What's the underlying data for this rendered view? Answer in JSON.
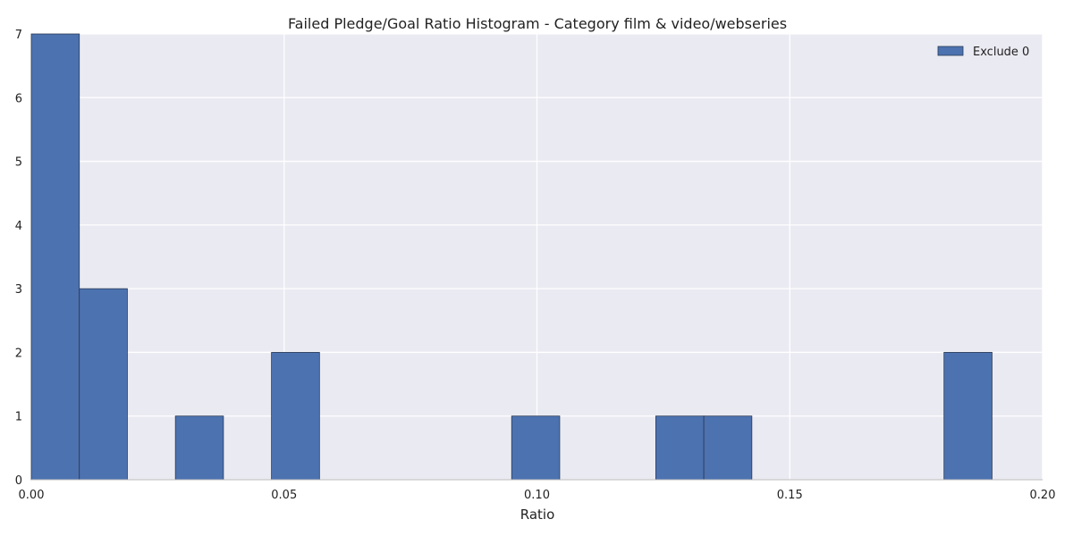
{
  "chart_data": {
    "type": "bar",
    "title": "Failed Pledge/Goal Ratio Histogram - Category film & video/webseries",
    "xlabel": "Ratio",
    "ylabel": "",
    "xlim": [
      0.0,
      0.2
    ],
    "ylim": [
      0,
      7
    ],
    "xticks": [
      "0.00",
      "0.05",
      "0.10",
      "0.15",
      "0.20"
    ],
    "xtick_values": [
      0.0,
      0.05,
      0.1,
      0.15,
      0.2
    ],
    "yticks": [
      "0",
      "1",
      "2",
      "3",
      "4",
      "5",
      "6",
      "7"
    ],
    "ytick_values": [
      0,
      1,
      2,
      3,
      4,
      5,
      6,
      7
    ],
    "grid": true,
    "legend_position": "top-right",
    "series": [
      {
        "name": "Exclude 0",
        "color": "#4c72b0",
        "bins": [
          {
            "start": 0.0,
            "end": 0.0095,
            "count": 7
          },
          {
            "start": 0.0095,
            "end": 0.019,
            "count": 3
          },
          {
            "start": 0.0285,
            "end": 0.038,
            "count": 1
          },
          {
            "start": 0.0475,
            "end": 0.057,
            "count": 2
          },
          {
            "start": 0.095,
            "end": 0.1045,
            "count": 1
          },
          {
            "start": 0.1235,
            "end": 0.133,
            "count": 1
          },
          {
            "start": 0.133,
            "end": 0.1425,
            "count": 1
          },
          {
            "start": 0.1805,
            "end": 0.19,
            "count": 2
          }
        ]
      }
    ]
  }
}
